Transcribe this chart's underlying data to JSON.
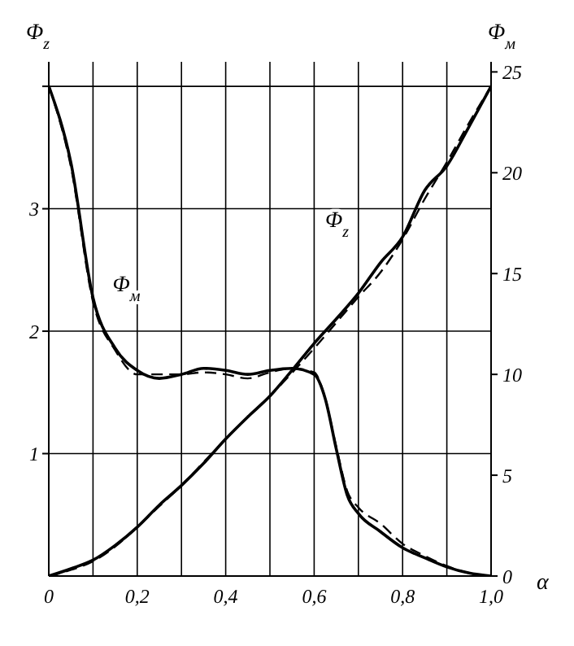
{
  "chart_data": {
    "type": "line",
    "xlabel": "α",
    "ylabel": "Φ$_{z}$",
    "y2label": "Φ$_{м}$",
    "xlim": [
      0,
      1
    ],
    "xticks": [
      {
        "value": 0,
        "label": "0"
      },
      {
        "value": 0.1,
        "label": null
      },
      {
        "value": 0.2,
        "label": "0,2"
      },
      {
        "value": 0.3,
        "label": null
      },
      {
        "value": 0.4,
        "label": "0,4"
      },
      {
        "value": 0.5,
        "label": null
      },
      {
        "value": 0.6,
        "label": "0,6"
      },
      {
        "value": 0.7,
        "label": null
      },
      {
        "value": 0.8,
        "label": "0,8"
      },
      {
        "value": 0.9,
        "label": null
      },
      {
        "value": 1,
        "label": "1,0"
      }
    ],
    "ylim": [
      0,
      4.2
    ],
    "yticks": [
      1,
      2,
      3,
      {
        "value": 4,
        "label": null
      }
    ],
    "y2lim": [
      0,
      25.5
    ],
    "y2ticks": [
      0,
      5,
      10,
      15,
      20,
      25
    ],
    "grid": true,
    "marker": "none",
    "series": [
      {
        "name": "Φ$_{м}$",
        "color": "#000000",
        "axis": "y2",
        "line_style": "solid",
        "x": [
          0,
          0.05,
          0.1,
          0.15,
          0.2,
          0.25,
          0.3,
          0.35,
          0.4,
          0.45,
          0.5,
          0.55,
          0.6,
          0.625,
          0.65,
          0.675,
          0.7,
          0.75,
          0.8,
          0.85,
          0.9,
          0.95,
          1.0
        ],
        "values": [
          24.3,
          20.5,
          13.8,
          11.3,
          10.2,
          9.8,
          10.0,
          10.3,
          10.2,
          10.0,
          10.2,
          10.3,
          10.0,
          8.8,
          6.3,
          4.0,
          3.1,
          2.2,
          1.4,
          0.9,
          0.45,
          0.15,
          0
        ]
      },
      {
        "color": "#000000",
        "axis": "y2",
        "line_style": "dashed",
        "x": [
          0,
          0.05,
          0.1,
          0.15,
          0.2,
          0.25,
          0.3,
          0.35,
          0.4,
          0.45,
          0.5,
          0.55,
          0.6,
          0.625,
          0.65,
          0.675,
          0.7,
          0.75,
          0.8,
          0.85,
          0.9,
          0.95,
          1.0
        ],
        "values": [
          24.3,
          20.3,
          13.6,
          11.2,
          10.0,
          10.0,
          10.0,
          10.1,
          10.0,
          9.8,
          10.1,
          10.3,
          10.1,
          8.8,
          6.4,
          4.2,
          3.4,
          2.6,
          1.6,
          1.0,
          0.5,
          0.15,
          0
        ]
      },
      {
        "name": "Φ$_{z}$",
        "color": "#000000",
        "axis": "y",
        "line_style": "solid",
        "x": [
          0,
          0.05,
          0.1,
          0.15,
          0.2,
          0.25,
          0.3,
          0.35,
          0.4,
          0.45,
          0.5,
          0.55,
          0.6,
          0.65,
          0.7,
          0.75,
          0.8,
          0.85,
          0.9,
          0.95,
          1.0
        ],
        "values": [
          0,
          0.06,
          0.13,
          0.25,
          0.4,
          0.58,
          0.74,
          0.92,
          1.12,
          1.3,
          1.47,
          1.68,
          1.9,
          2.1,
          2.31,
          2.56,
          2.77,
          3.15,
          3.35,
          3.67,
          4.0
        ]
      },
      {
        "color": "#000000",
        "axis": "y",
        "line_style": "dashed",
        "x": [
          0,
          0.05,
          0.1,
          0.15,
          0.2,
          0.25,
          0.3,
          0.35,
          0.4,
          0.45,
          0.5,
          0.55,
          0.6,
          0.65,
          0.7,
          0.75,
          0.8,
          0.85,
          0.9,
          0.95,
          1.0
        ],
        "values": [
          0,
          0.05,
          0.12,
          0.24,
          0.4,
          0.57,
          0.74,
          0.93,
          1.12,
          1.3,
          1.47,
          1.66,
          1.86,
          2.07,
          2.28,
          2.48,
          2.75,
          3.08,
          3.38,
          3.7,
          4.0
        ]
      }
    ]
  }
}
